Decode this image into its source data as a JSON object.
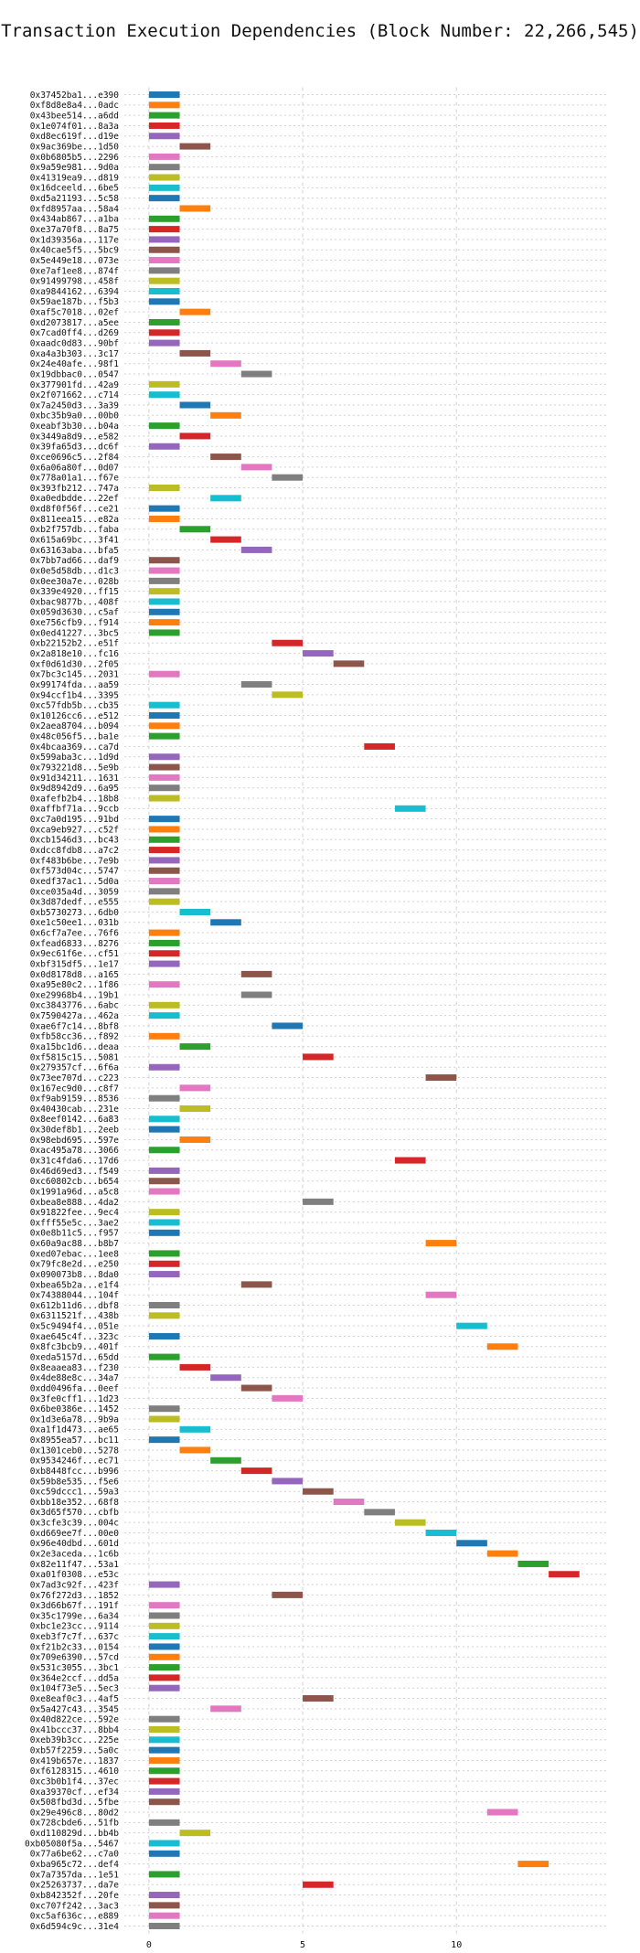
{
  "chart_data": {
    "type": "bar",
    "orientation": "horizontal",
    "title": "Transaction Execution Dependencies (Block Number: 22,266,545)",
    "xlabel": "",
    "ylabel": "",
    "xlim": [
      -0.8,
      14.9
    ],
    "xticks": [
      0,
      5,
      10
    ],
    "grid": true,
    "palette": [
      "#1f77b4",
      "#ff7f0e",
      "#2ca02c",
      "#d62728",
      "#9467bd",
      "#8c564b",
      "#e377c2",
      "#7f7f7f",
      "#bcbd22",
      "#17becf"
    ],
    "bar_width": 1,
    "transactions": [
      {
        "label": "0x37452ba1...e390",
        "start": 0,
        "color": "#1f77b4"
      },
      {
        "label": "0xf8d8e8a4...0adc",
        "start": 0,
        "color": "#ff7f0e"
      },
      {
        "label": "0x43bee514...a6dd",
        "start": 0,
        "color": "#2ca02c"
      },
      {
        "label": "0x1e074f01...8a3a",
        "start": 0,
        "color": "#d62728"
      },
      {
        "label": "0xd8ec619f...d19e",
        "start": 0,
        "color": "#9467bd"
      },
      {
        "label": "0x9ac369be...1d50",
        "start": 1,
        "color": "#8c564b"
      },
      {
        "label": "0x0b6805b5...2296",
        "start": 0,
        "color": "#e377c2"
      },
      {
        "label": "0x9a59e981...9d0a",
        "start": 0,
        "color": "#7f7f7f"
      },
      {
        "label": "0x41319ea9...d819",
        "start": 0,
        "color": "#bcbd22"
      },
      {
        "label": "0x16dceeld...6be5",
        "start": 0,
        "color": "#17becf"
      },
      {
        "label": "0xd5a21193...5c58",
        "start": 0,
        "color": "#1f77b4"
      },
      {
        "label": "0xfd8957aa...58a4",
        "start": 1,
        "color": "#ff7f0e"
      },
      {
        "label": "0x434ab867...a1ba",
        "start": 0,
        "color": "#2ca02c"
      },
      {
        "label": "0xe37a70f8...8a75",
        "start": 0,
        "color": "#d62728"
      },
      {
        "label": "0x1d39356a...117e",
        "start": 0,
        "color": "#9467bd"
      },
      {
        "label": "0x40cae5f5...5bc9",
        "start": 0,
        "color": "#8c564b"
      },
      {
        "label": "0x5e449e18...073e",
        "start": 0,
        "color": "#e377c2"
      },
      {
        "label": "0xe7af1ee8...874f",
        "start": 0,
        "color": "#7f7f7f"
      },
      {
        "label": "0x91499798...458f",
        "start": 0,
        "color": "#bcbd22"
      },
      {
        "label": "0xa9844162...6394",
        "start": 0,
        "color": "#17becf"
      },
      {
        "label": "0x59ae187b...f5b3",
        "start": 0,
        "color": "#1f77b4"
      },
      {
        "label": "0xaf5c7018...02ef",
        "start": 1,
        "color": "#ff7f0e"
      },
      {
        "label": "0xd2073817...a5ee",
        "start": 0,
        "color": "#2ca02c"
      },
      {
        "label": "0x7cad0ff4...d269",
        "start": 0,
        "color": "#d62728"
      },
      {
        "label": "0xaadc0d83...90bf",
        "start": 0,
        "color": "#9467bd"
      },
      {
        "label": "0xa4a3b303...3c17",
        "start": 1,
        "color": "#8c564b"
      },
      {
        "label": "0x24e40afe...98f1",
        "start": 2,
        "color": "#e377c2"
      },
      {
        "label": "0x19dbbac0...0547",
        "start": 3,
        "color": "#7f7f7f"
      },
      {
        "label": "0x377901fd...42a9",
        "start": 0,
        "color": "#bcbd22"
      },
      {
        "label": "0x2f071662...c714",
        "start": 0,
        "color": "#17becf"
      },
      {
        "label": "0x7a2450d3...3a39",
        "start": 1,
        "color": "#1f77b4"
      },
      {
        "label": "0xbc35b9a0...00b0",
        "start": 2,
        "color": "#ff7f0e"
      },
      {
        "label": "0xeabf3b30...b04a",
        "start": 0,
        "color": "#2ca02c"
      },
      {
        "label": "0x3449a8d9...e582",
        "start": 1,
        "color": "#d62728"
      },
      {
        "label": "0x39fa65d3...dc6f",
        "start": 0,
        "color": "#9467bd"
      },
      {
        "label": "0xce0696c5...2f84",
        "start": 2,
        "color": "#8c564b"
      },
      {
        "label": "0x6a06a80f...0d07",
        "start": 3,
        "color": "#e377c2"
      },
      {
        "label": "0x778a01a1...f67e",
        "start": 4,
        "color": "#7f7f7f"
      },
      {
        "label": "0x393fb212...747a",
        "start": 0,
        "color": "#bcbd22"
      },
      {
        "label": "0xa0edbdde...22ef",
        "start": 2,
        "color": "#17becf"
      },
      {
        "label": "0xd8f0f56f...ce21",
        "start": 0,
        "color": "#1f77b4"
      },
      {
        "label": "0x811eea15...e82a",
        "start": 0,
        "color": "#ff7f0e"
      },
      {
        "label": "0xb2f757db...faba",
        "start": 1,
        "color": "#2ca02c"
      },
      {
        "label": "0x615a69bc...3f41",
        "start": 2,
        "color": "#d62728"
      },
      {
        "label": "0x63163aba...bfa5",
        "start": 3,
        "color": "#9467bd"
      },
      {
        "label": "0x7bb7ad66...daf9",
        "start": 0,
        "color": "#8c564b"
      },
      {
        "label": "0x0e5d58db...d1c3",
        "start": 0,
        "color": "#e377c2"
      },
      {
        "label": "0x0ee30a7e...028b",
        "start": 0,
        "color": "#7f7f7f"
      },
      {
        "label": "0x339e4920...ff15",
        "start": 0,
        "color": "#bcbd22"
      },
      {
        "label": "0xbac9877b...408f",
        "start": 0,
        "color": "#17becf"
      },
      {
        "label": "0x059d3630...c5af",
        "start": 0,
        "color": "#1f77b4"
      },
      {
        "label": "0xe756cfb9...f914",
        "start": 0,
        "color": "#ff7f0e"
      },
      {
        "label": "0x0ed41227...3bc5",
        "start": 0,
        "color": "#2ca02c"
      },
      {
        "label": "0xb22152b2...e51f",
        "start": 4,
        "color": "#d62728"
      },
      {
        "label": "0x2a818e10...fc16",
        "start": 5,
        "color": "#9467bd"
      },
      {
        "label": "0xf0d61d30...2f05",
        "start": 6,
        "color": "#8c564b"
      },
      {
        "label": "0x7bc3c145...2031",
        "start": 0,
        "color": "#e377c2"
      },
      {
        "label": "0x99174fda...aa59",
        "start": 3,
        "color": "#7f7f7f"
      },
      {
        "label": "0x94ccf1b4...3395",
        "start": 4,
        "color": "#bcbd22"
      },
      {
        "label": "0xc57fdb5b...cb35",
        "start": 0,
        "color": "#17becf"
      },
      {
        "label": "0x10126cc6...e512",
        "start": 0,
        "color": "#1f77b4"
      },
      {
        "label": "0x2aea8704...b094",
        "start": 0,
        "color": "#ff7f0e"
      },
      {
        "label": "0x48c056f5...ba1e",
        "start": 0,
        "color": "#2ca02c"
      },
      {
        "label": "0x4bcaa369...ca7d",
        "start": 7,
        "color": "#d62728"
      },
      {
        "label": "0x599aba3c...1d9d",
        "start": 0,
        "color": "#9467bd"
      },
      {
        "label": "0x793221d8...5e9b",
        "start": 0,
        "color": "#8c564b"
      },
      {
        "label": "0x91d34211...1631",
        "start": 0,
        "color": "#e377c2"
      },
      {
        "label": "0x9d8942d9...6a95",
        "start": 0,
        "color": "#7f7f7f"
      },
      {
        "label": "0xafefb2b4...18b8",
        "start": 0,
        "color": "#bcbd22"
      },
      {
        "label": "0xaffbf71a...9ccb",
        "start": 8,
        "color": "#17becf"
      },
      {
        "label": "0xc7a0d195...91bd",
        "start": 0,
        "color": "#1f77b4"
      },
      {
        "label": "0xca9eb927...c52f",
        "start": 0,
        "color": "#ff7f0e"
      },
      {
        "label": "0xcb1546d3...bc43",
        "start": 0,
        "color": "#2ca02c"
      },
      {
        "label": "0xdcc8fdb8...a7c2",
        "start": 0,
        "color": "#d62728"
      },
      {
        "label": "0xf483b6be...7e9b",
        "start": 0,
        "color": "#9467bd"
      },
      {
        "label": "0xf573d04c...5747",
        "start": 0,
        "color": "#8c564b"
      },
      {
        "label": "0xedf37ac1...5d0a",
        "start": 0,
        "color": "#e377c2"
      },
      {
        "label": "0xce035a4d...3059",
        "start": 0,
        "color": "#7f7f7f"
      },
      {
        "label": "0x3d87dedf...e555",
        "start": 0,
        "color": "#bcbd22"
      },
      {
        "label": "0xb5730273...6db0",
        "start": 1,
        "color": "#17becf"
      },
      {
        "label": "0xe1c50ee1...031b",
        "start": 2,
        "color": "#1f77b4"
      },
      {
        "label": "0x6cf7a7ee...76f6",
        "start": 0,
        "color": "#ff7f0e"
      },
      {
        "label": "0xfead6833...8276",
        "start": 0,
        "color": "#2ca02c"
      },
      {
        "label": "0x9ec61f6e...cf51",
        "start": 0,
        "color": "#d62728"
      },
      {
        "label": "0xbf315df5...1e17",
        "start": 0,
        "color": "#9467bd"
      },
      {
        "label": "0x0d8178d8...a165",
        "start": 3,
        "color": "#8c564b"
      },
      {
        "label": "0xa95e80c2...1f86",
        "start": 0,
        "color": "#e377c2"
      },
      {
        "label": "0xe29968b4...19b1",
        "start": 3,
        "color": "#7f7f7f"
      },
      {
        "label": "0xc3843776...6abc",
        "start": 0,
        "color": "#bcbd22"
      },
      {
        "label": "0x7590427a...462a",
        "start": 0,
        "color": "#17becf"
      },
      {
        "label": "0xae6f7c14...8bf8",
        "start": 4,
        "color": "#1f77b4"
      },
      {
        "label": "0xfb58cc36...f892",
        "start": 0,
        "color": "#ff7f0e"
      },
      {
        "label": "0xa15bc1d6...deaa",
        "start": 1,
        "color": "#2ca02c"
      },
      {
        "label": "0xf5815c15...5081",
        "start": 5,
        "color": "#d62728"
      },
      {
        "label": "0x279357cf...6f6a",
        "start": 0,
        "color": "#9467bd"
      },
      {
        "label": "0x73ee707d...c223",
        "start": 9,
        "color": "#8c564b"
      },
      {
        "label": "0x167ec9d0...c8f7",
        "start": 1,
        "color": "#e377c2"
      },
      {
        "label": "0xf9ab9159...8536",
        "start": 0,
        "color": "#7f7f7f"
      },
      {
        "label": "0x40430cab...231e",
        "start": 1,
        "color": "#bcbd22"
      },
      {
        "label": "0x8eef0142...6a83",
        "start": 0,
        "color": "#17becf"
      },
      {
        "label": "0x30def8b1...2eeb",
        "start": 0,
        "color": "#1f77b4"
      },
      {
        "label": "0x98ebd695...597e",
        "start": 1,
        "color": "#ff7f0e"
      },
      {
        "label": "0xac495a78...3066",
        "start": 0,
        "color": "#2ca02c"
      },
      {
        "label": "0x31c4fda6...17d6",
        "start": 8,
        "color": "#d62728"
      },
      {
        "label": "0x46d69ed3...f549",
        "start": 0,
        "color": "#9467bd"
      },
      {
        "label": "0xc60802cb...b654",
        "start": 0,
        "color": "#8c564b"
      },
      {
        "label": "0x1991a96d...a5c8",
        "start": 0,
        "color": "#e377c2"
      },
      {
        "label": "0xbea8e888...4da2",
        "start": 5,
        "color": "#7f7f7f"
      },
      {
        "label": "0x91822fee...9ec4",
        "start": 0,
        "color": "#bcbd22"
      },
      {
        "label": "0xfff55e5c...3ae2",
        "start": 0,
        "color": "#17becf"
      },
      {
        "label": "0x0e8b11c5...f957",
        "start": 0,
        "color": "#1f77b4"
      },
      {
        "label": "0x60a9ac88...b8b7",
        "start": 9,
        "color": "#ff7f0e"
      },
      {
        "label": "0xed07ebac...1ee8",
        "start": 0,
        "color": "#2ca02c"
      },
      {
        "label": "0x79fc8e2d...e250",
        "start": 0,
        "color": "#d62728"
      },
      {
        "label": "0x090073b8...8da0",
        "start": 0,
        "color": "#9467bd"
      },
      {
        "label": "0xbea65b2a...e1f4",
        "start": 3,
        "color": "#8c564b"
      },
      {
        "label": "0x74388044...104f",
        "start": 9,
        "color": "#e377c2"
      },
      {
        "label": "0x612b11d6...dbf8",
        "start": 0,
        "color": "#7f7f7f"
      },
      {
        "label": "0x6311521f...438b",
        "start": 0,
        "color": "#bcbd22"
      },
      {
        "label": "0x5c9494f4...051e",
        "start": 10,
        "color": "#17becf"
      },
      {
        "label": "0xae645c4f...323c",
        "start": 0,
        "color": "#1f77b4"
      },
      {
        "label": "0x8fc3bcb9...401f",
        "start": 11,
        "color": "#ff7f0e"
      },
      {
        "label": "0xeda5157d...65dd",
        "start": 0,
        "color": "#2ca02c"
      },
      {
        "label": "0x8eaaea83...f230",
        "start": 1,
        "color": "#d62728"
      },
      {
        "label": "0x4de88e8c...34a7",
        "start": 2,
        "color": "#9467bd"
      },
      {
        "label": "0xdd0496fa...0eef",
        "start": 3,
        "color": "#8c564b"
      },
      {
        "label": "0x3fe0cff1...1d23",
        "start": 4,
        "color": "#e377c2"
      },
      {
        "label": "0x6be0386e...1452",
        "start": 0,
        "color": "#7f7f7f"
      },
      {
        "label": "0x1d3e6a78...9b9a",
        "start": 0,
        "color": "#bcbd22"
      },
      {
        "label": "0xa1f1d473...ae65",
        "start": 1,
        "color": "#17becf"
      },
      {
        "label": "0x8955ea57...bc11",
        "start": 0,
        "color": "#1f77b4"
      },
      {
        "label": "0x1301ceb0...5278",
        "start": 1,
        "color": "#ff7f0e"
      },
      {
        "label": "0x9534246f...ec71",
        "start": 2,
        "color": "#2ca02c"
      },
      {
        "label": "0xb8448fcc...b996",
        "start": 3,
        "color": "#d62728"
      },
      {
        "label": "0x59b8e535...f5e6",
        "start": 4,
        "color": "#9467bd"
      },
      {
        "label": "0xc59dccc1...59a3",
        "start": 5,
        "color": "#8c564b"
      },
      {
        "label": "0xbb18e352...68f8",
        "start": 6,
        "color": "#e377c2"
      },
      {
        "label": "0x3d65f570...cbfb",
        "start": 7,
        "color": "#7f7f7f"
      },
      {
        "label": "0x3cfe3c39...004c",
        "start": 8,
        "color": "#bcbd22"
      },
      {
        "label": "0xd669ee7f...00e0",
        "start": 9,
        "color": "#17becf"
      },
      {
        "label": "0x96e40dbd...601d",
        "start": 10,
        "color": "#1f77b4"
      },
      {
        "label": "0x2e3aceda...1c6b",
        "start": 11,
        "color": "#ff7f0e"
      },
      {
        "label": "0x82e11f47...53a1",
        "start": 12,
        "color": "#2ca02c"
      },
      {
        "label": "0xa01f0308...e53c",
        "start": 13,
        "color": "#d62728"
      },
      {
        "label": "0x7ad3c92f...423f",
        "start": 0,
        "color": "#9467bd"
      },
      {
        "label": "0x76f272d3...1852",
        "start": 4,
        "color": "#8c564b"
      },
      {
        "label": "0x3d66b67f...191f",
        "start": 0,
        "color": "#e377c2"
      },
      {
        "label": "0x35c1799e...6a34",
        "start": 0,
        "color": "#7f7f7f"
      },
      {
        "label": "0xbc1e23cc...9114",
        "start": 0,
        "color": "#bcbd22"
      },
      {
        "label": "0xeb3f7c7f...637c",
        "start": 0,
        "color": "#17becf"
      },
      {
        "label": "0xf21b2c33...0154",
        "start": 0,
        "color": "#1f77b4"
      },
      {
        "label": "0x709e6390...57cd",
        "start": 0,
        "color": "#ff7f0e"
      },
      {
        "label": "0x531c3055...3bc1",
        "start": 0,
        "color": "#2ca02c"
      },
      {
        "label": "0x364e2ccf...dd5a",
        "start": 0,
        "color": "#d62728"
      },
      {
        "label": "0x104f73e5...5ec3",
        "start": 0,
        "color": "#9467bd"
      },
      {
        "label": "0xe8eaf0c3...4af5",
        "start": 5,
        "color": "#8c564b"
      },
      {
        "label": "0x5a427c43...3545",
        "start": 2,
        "color": "#e377c2"
      },
      {
        "label": "0x40d822ce...592e",
        "start": 0,
        "color": "#7f7f7f"
      },
      {
        "label": "0x41bccc37...8bb4",
        "start": 0,
        "color": "#bcbd22"
      },
      {
        "label": "0xeb39b3cc...225e",
        "start": 0,
        "color": "#17becf"
      },
      {
        "label": "0xb57f2259...5a0c",
        "start": 0,
        "color": "#1f77b4"
      },
      {
        "label": "0x419b657e...1837",
        "start": 0,
        "color": "#ff7f0e"
      },
      {
        "label": "0xf6128315...4610",
        "start": 0,
        "color": "#2ca02c"
      },
      {
        "label": "0xc3b0b1f4...37ec",
        "start": 0,
        "color": "#d62728"
      },
      {
        "label": "0xa39370cf...ef34",
        "start": 0,
        "color": "#9467bd"
      },
      {
        "label": "0x508fbd3d...5fbe",
        "start": 0,
        "color": "#8c564b"
      },
      {
        "label": "0x29e496c8...80d2",
        "start": 11,
        "color": "#e377c2"
      },
      {
        "label": "0x728cbde6...51fb",
        "start": 0,
        "color": "#7f7f7f"
      },
      {
        "label": "0xd110829d...bb4b",
        "start": 1,
        "color": "#bcbd22"
      },
      {
        "label": "0xb05080f5a...5467",
        "start": 0,
        "color": "#17becf"
      },
      {
        "label": "0x77a6be62...c7a0",
        "start": 0,
        "color": "#1f77b4"
      },
      {
        "label": "0xba965c72...def4",
        "start": 12,
        "color": "#ff7f0e"
      },
      {
        "label": "0x7a7357da...1e51",
        "start": 0,
        "color": "#2ca02c"
      },
      {
        "label": "0x25263737...da7e",
        "start": 5,
        "color": "#d62728"
      },
      {
        "label": "0xb842352f...20fe",
        "start": 0,
        "color": "#9467bd"
      },
      {
        "label": "0xc707f242...3ac3",
        "start": 0,
        "color": "#8c564b"
      },
      {
        "label": "0xc5af636c...e889",
        "start": 0,
        "color": "#e377c2"
      },
      {
        "label": "0x6d594c9c...31e4",
        "start": 0,
        "color": "#7f7f7f"
      }
    ]
  }
}
